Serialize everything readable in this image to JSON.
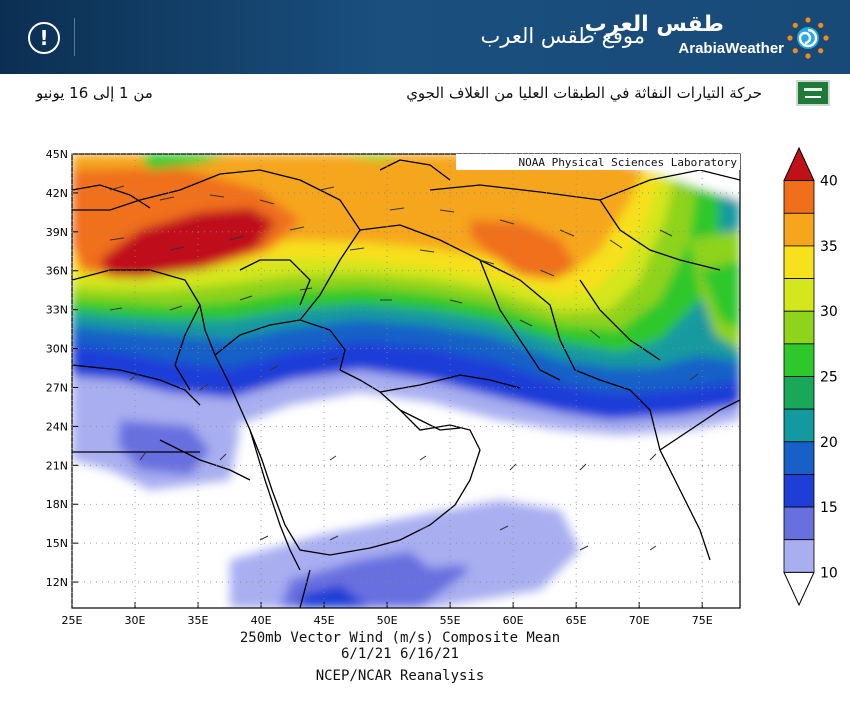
{
  "header": {
    "site_name": "موقع طقس العرب",
    "logo_arabic": "طقس العرب",
    "logo_english": "ArabiaWeather",
    "alert_icon": "exclamation-circle-icon",
    "logo_icon": "sun-swirl-icon",
    "colors": {
      "header_bg": "#1a4f7e",
      "logo_accent": "#f08a1c"
    }
  },
  "caption": {
    "title": "حركة التيارات النفاثة في الطبقات العليا من الغلاف الجوي",
    "date_range": "من 1 إلى 16 يونيو",
    "flag_icon": "saudi-flag-icon"
  },
  "map": {
    "credit": "NOAA Physical Sciences Laboratory",
    "lat_labels": [
      "45N",
      "42N",
      "39N",
      "36N",
      "33N",
      "30N",
      "27N",
      "24N",
      "21N",
      "18N",
      "15N",
      "12N"
    ],
    "lon_labels": [
      "25E",
      "30E",
      "35E",
      "40E",
      "45E",
      "50E",
      "55E",
      "60E",
      "65E",
      "70E",
      "75E"
    ],
    "lat_range": [
      10,
      45
    ],
    "lon_range": [
      25,
      78
    ],
    "legend": {
      "unit": "m/s",
      "labels": [
        "40",
        "35",
        "30",
        "25",
        "20",
        "15",
        "10"
      ],
      "colors": [
        "#c0101a",
        "#f0701a",
        "#f6a61c",
        "#f7e01c",
        "#d4e61c",
        "#8ed31c",
        "#2ec82c",
        "#19a85a",
        "#129aa0",
        "#1660c8",
        "#1e3ed8",
        "#6870e0",
        "#a8aef0",
        "#ffffff"
      ]
    }
  },
  "footer": {
    "line1": "250mb Vector Wind (m/s) Composite Mean",
    "line2": "6/1/21 6/16/21",
    "line3": "NCEP/NCAR Reanalysis"
  }
}
